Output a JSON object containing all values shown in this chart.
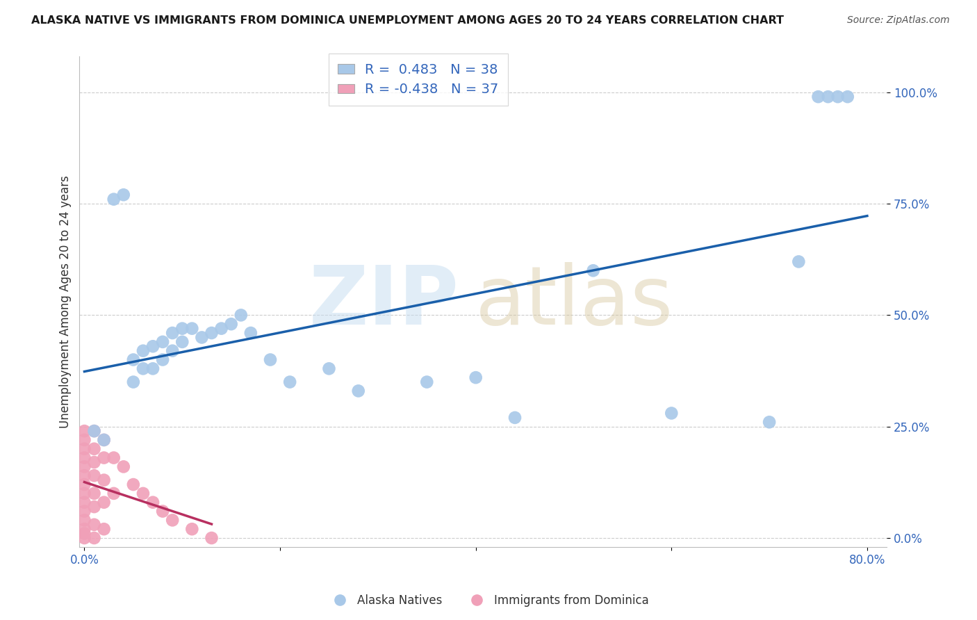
{
  "title": "ALASKA NATIVE VS IMMIGRANTS FROM DOMINICA UNEMPLOYMENT AMONG AGES 20 TO 24 YEARS CORRELATION CHART",
  "source": "Source: ZipAtlas.com",
  "ylabel": "Unemployment Among Ages 20 to 24 years",
  "xlim": [
    -0.005,
    0.82
  ],
  "ylim": [
    -0.02,
    1.08
  ],
  "xtick_positions": [
    0.0,
    0.2,
    0.4,
    0.6,
    0.8
  ],
  "xticklabels": [
    "0.0%",
    "",
    "",
    "",
    "80.0%"
  ],
  "ytick_positions": [
    0.0,
    0.25,
    0.5,
    0.75,
    1.0
  ],
  "yticklabels": [
    "0.0%",
    "25.0%",
    "50.0%",
    "75.0%",
    "100.0%"
  ],
  "blue_dot_color": "#a8c8e8",
  "blue_line_color": "#1a5faa",
  "pink_dot_color": "#f0a0b8",
  "pink_line_color": "#b83060",
  "legend_R1": "0.483",
  "legend_N1": "38",
  "legend_R2": "-0.438",
  "legend_N2": "37",
  "alaska_x": [
    0.01,
    0.02,
    0.03,
    0.04,
    0.05,
    0.05,
    0.06,
    0.06,
    0.07,
    0.07,
    0.08,
    0.08,
    0.09,
    0.09,
    0.1,
    0.1,
    0.11,
    0.12,
    0.13,
    0.14,
    0.15,
    0.16,
    0.17,
    0.19,
    0.21,
    0.25,
    0.28,
    0.35,
    0.4,
    0.44,
    0.52,
    0.6,
    0.7,
    0.73,
    0.75,
    0.76,
    0.77,
    0.78
  ],
  "alaska_y": [
    0.24,
    0.22,
    0.76,
    0.77,
    0.4,
    0.35,
    0.42,
    0.38,
    0.43,
    0.38,
    0.44,
    0.4,
    0.46,
    0.42,
    0.47,
    0.44,
    0.47,
    0.45,
    0.46,
    0.47,
    0.48,
    0.5,
    0.46,
    0.4,
    0.35,
    0.38,
    0.33,
    0.35,
    0.36,
    0.27,
    0.6,
    0.28,
    0.26,
    0.62,
    0.99,
    0.99,
    0.99,
    0.99
  ],
  "dominica_x": [
    0.0,
    0.0,
    0.0,
    0.0,
    0.0,
    0.0,
    0.0,
    0.0,
    0.0,
    0.0,
    0.0,
    0.0,
    0.0,
    0.0,
    0.01,
    0.01,
    0.01,
    0.01,
    0.01,
    0.01,
    0.01,
    0.01,
    0.02,
    0.02,
    0.02,
    0.02,
    0.02,
    0.03,
    0.03,
    0.04,
    0.05,
    0.06,
    0.07,
    0.08,
    0.09,
    0.11,
    0.13
  ],
  "dominica_y": [
    0.24,
    0.22,
    0.2,
    0.18,
    0.16,
    0.14,
    0.12,
    0.1,
    0.08,
    0.06,
    0.04,
    0.02,
    0.01,
    0.0,
    0.24,
    0.2,
    0.17,
    0.14,
    0.1,
    0.07,
    0.03,
    0.0,
    0.22,
    0.18,
    0.13,
    0.08,
    0.02,
    0.18,
    0.1,
    0.16,
    0.12,
    0.1,
    0.08,
    0.06,
    0.04,
    0.02,
    0.0
  ]
}
